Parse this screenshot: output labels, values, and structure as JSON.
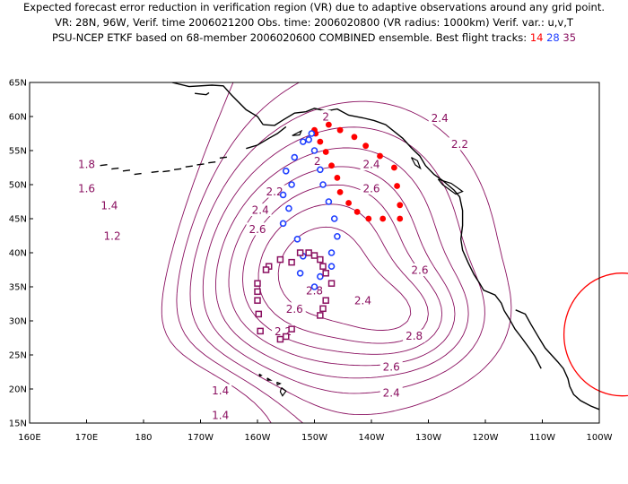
{
  "title": {
    "line1": "Expected forecast error reduction in verification region (VR) due to adaptive observations around any grid point.",
    "line2": "VR: 28N, 96W, Verif. time 2006021200   Obs. time: 2006020800 (VR radius: 1000km)    Verif. var.: u,v,T",
    "line3_prefix": "PSU-NCEP ETKF based on 68-member 2006020600 COMBINED ensemble.   Best flight tracks:",
    "track_14": "14",
    "track_28": "28",
    "track_35": "35"
  },
  "map": {
    "lon_labels": [
      "160E",
      "170E",
      "180",
      "170W",
      "160W",
      "150W",
      "140W",
      "130W",
      "120W",
      "110W",
      "100W"
    ],
    "lat_labels": [
      "65N",
      "60N",
      "55N",
      "50N",
      "45N",
      "40N",
      "35N",
      "30N",
      "25N",
      "20N",
      "15N"
    ],
    "contour_labels": [
      {
        "text": "2",
        "lon": -148,
        "lat": 60
      },
      {
        "text": "2.4",
        "lon": -128,
        "lat": 59.8
      },
      {
        "text": "2.2",
        "lon": -124.5,
        "lat": 56
      },
      {
        "text": "1.8",
        "lon": 170,
        "lat": 53
      },
      {
        "text": "2",
        "lon": -149.5,
        "lat": 53.5
      },
      {
        "text": "2.4",
        "lon": -140,
        "lat": 53
      },
      {
        "text": "1.6",
        "lon": 170,
        "lat": 49.5
      },
      {
        "text": "2.2",
        "lon": -157,
        "lat": 49
      },
      {
        "text": "2.6",
        "lon": -140,
        "lat": 49.5
      },
      {
        "text": "1.4",
        "lon": 174,
        "lat": 47
      },
      {
        "text": "2.4",
        "lon": -159.5,
        "lat": 46.3
      },
      {
        "text": "2.6",
        "lon": -160,
        "lat": 43.5
      },
      {
        "text": "1.2",
        "lon": 174.5,
        "lat": 42.5
      },
      {
        "text": "2.6",
        "lon": -131.5,
        "lat": 37.5
      },
      {
        "text": "2.8",
        "lon": -150,
        "lat": 34.5
      },
      {
        "text": "2.4",
        "lon": -141.5,
        "lat": 33
      },
      {
        "text": "2.6",
        "lon": -153.5,
        "lat": 31.8
      },
      {
        "text": "2.2",
        "lon": -155.5,
        "lat": 28.5
      },
      {
        "text": "2.8",
        "lon": -132.5,
        "lat": 27.8
      },
      {
        "text": "2.6",
        "lon": -136.5,
        "lat": 23.3
      },
      {
        "text": "2.4",
        "lon": -136.5,
        "lat": 19.5
      },
      {
        "text": "1.4",
        "lon": -166.5,
        "lat": 19.8
      },
      {
        "text": "1.4",
        "lon": -166.5,
        "lat": 16.2
      }
    ],
    "verification_region": {
      "lat": 28,
      "lon": -96,
      "radius_km": 1000
    }
  },
  "colors": {
    "contour": "#8a1060",
    "track_14": "#ff0000",
    "track_28": "#2040ff",
    "track_35": "#8a1060",
    "vr_circle": "#ff0000",
    "coast": "#000000"
  },
  "chart_data": {
    "type": "contour-map",
    "variable": "expected forecast error reduction",
    "xlim": [
      160,
      260
    ],
    "ylim": [
      15,
      65
    ],
    "tracks": [
      {
        "name": "14",
        "marker": "filled-circle",
        "color": "#ff0000",
        "points": [
          [
            -150,
            58
          ],
          [
            -147.5,
            58.8
          ],
          [
            -145.5,
            58
          ],
          [
            -143,
            57
          ],
          [
            -141,
            55.7
          ],
          [
            -138.5,
            54.2
          ],
          [
            -136,
            52.5
          ],
          [
            -135.5,
            49.8
          ],
          [
            -135,
            47
          ],
          [
            -135,
            45
          ],
          [
            -138,
            45
          ],
          [
            -140.5,
            45
          ],
          [
            -142.5,
            46
          ],
          [
            -144,
            47.3
          ],
          [
            -145.5,
            48.9
          ],
          [
            -146,
            51
          ],
          [
            -147,
            52.8
          ],
          [
            -148,
            54.8
          ],
          [
            -149,
            56.3
          ],
          [
            -149.8,
            57.5
          ]
        ]
      },
      {
        "name": "28",
        "marker": "open-circle",
        "color": "#2040ff",
        "points": [
          [
            -150.5,
            57.5
          ],
          [
            -152,
            56.3
          ],
          [
            -153.5,
            54
          ],
          [
            -155,
            52
          ],
          [
            -154,
            50
          ],
          [
            -155.5,
            48.5
          ],
          [
            -154.5,
            46.5
          ],
          [
            -155.5,
            44.3
          ],
          [
            -153,
            42
          ],
          [
            -152,
            39.5
          ],
          [
            -152.5,
            37
          ],
          [
            -150,
            35
          ],
          [
            -149,
            36.5
          ],
          [
            -147,
            38
          ],
          [
            -147,
            40
          ],
          [
            -146,
            42.4
          ],
          [
            -146.5,
            45
          ],
          [
            -147.5,
            47.5
          ],
          [
            -148.5,
            50
          ],
          [
            -149,
            52.2
          ],
          [
            -150,
            55
          ],
          [
            -151,
            56.6
          ]
        ]
      },
      {
        "name": "35",
        "marker": "open-square",
        "color": "#8a1060",
        "points": [
          [
            -152.5,
            40
          ],
          [
            -154,
            38.6
          ],
          [
            -156,
            39
          ],
          [
            -158,
            38
          ],
          [
            -158.5,
            37.5
          ],
          [
            -160,
            35.5
          ],
          [
            -160,
            34.3
          ],
          [
            -160,
            33
          ],
          [
            -159.8,
            31
          ],
          [
            -159.5,
            28.5
          ],
          [
            -156,
            27.3
          ],
          [
            -155,
            27.7
          ],
          [
            -154,
            28.8
          ],
          [
            -149,
            30.8
          ],
          [
            -148.5,
            31.8
          ],
          [
            -148,
            33
          ],
          [
            -147,
            35.5
          ],
          [
            -148,
            37
          ],
          [
            -148.5,
            38
          ],
          [
            -149,
            39
          ],
          [
            -150,
            39.6
          ],
          [
            -151,
            40
          ]
        ]
      }
    ]
  }
}
